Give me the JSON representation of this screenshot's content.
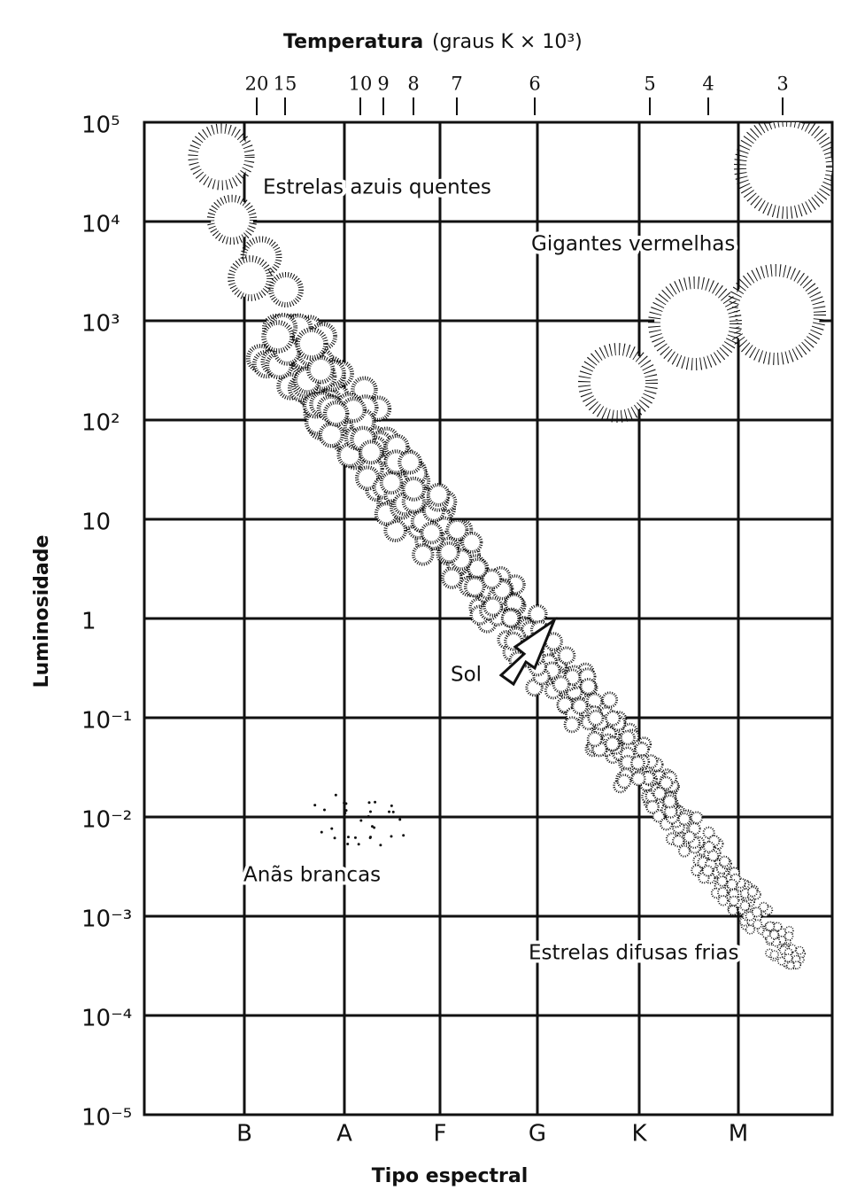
{
  "top_axis": {
    "title": "Temperatura",
    "unit": "(graus K × 10³)",
    "ticks": [
      "20",
      "15",
      "10",
      "9",
      "8",
      "7",
      "6",
      "5",
      "4",
      "3"
    ]
  },
  "y_axis": {
    "title": "Luminosidade",
    "ticks": [
      "10⁵",
      "10⁴",
      "10³",
      "10²",
      "10",
      "1",
      "10⁻¹",
      "10⁻²",
      "10⁻³",
      "10⁻⁴",
      "10⁻⁵"
    ]
  },
  "x_axis": {
    "title": "Tipo espectral",
    "ticks": [
      "B",
      "A",
      "F",
      "G",
      "K",
      "M"
    ]
  },
  "labels": {
    "hot_blue": "Estrelas azuis quentes",
    "red_giants": "Gigantes vermelhas",
    "white_dwarfs": "Anãs brancas",
    "cool_dim": "Estrelas difusas frias",
    "sun": "Sol"
  }
}
